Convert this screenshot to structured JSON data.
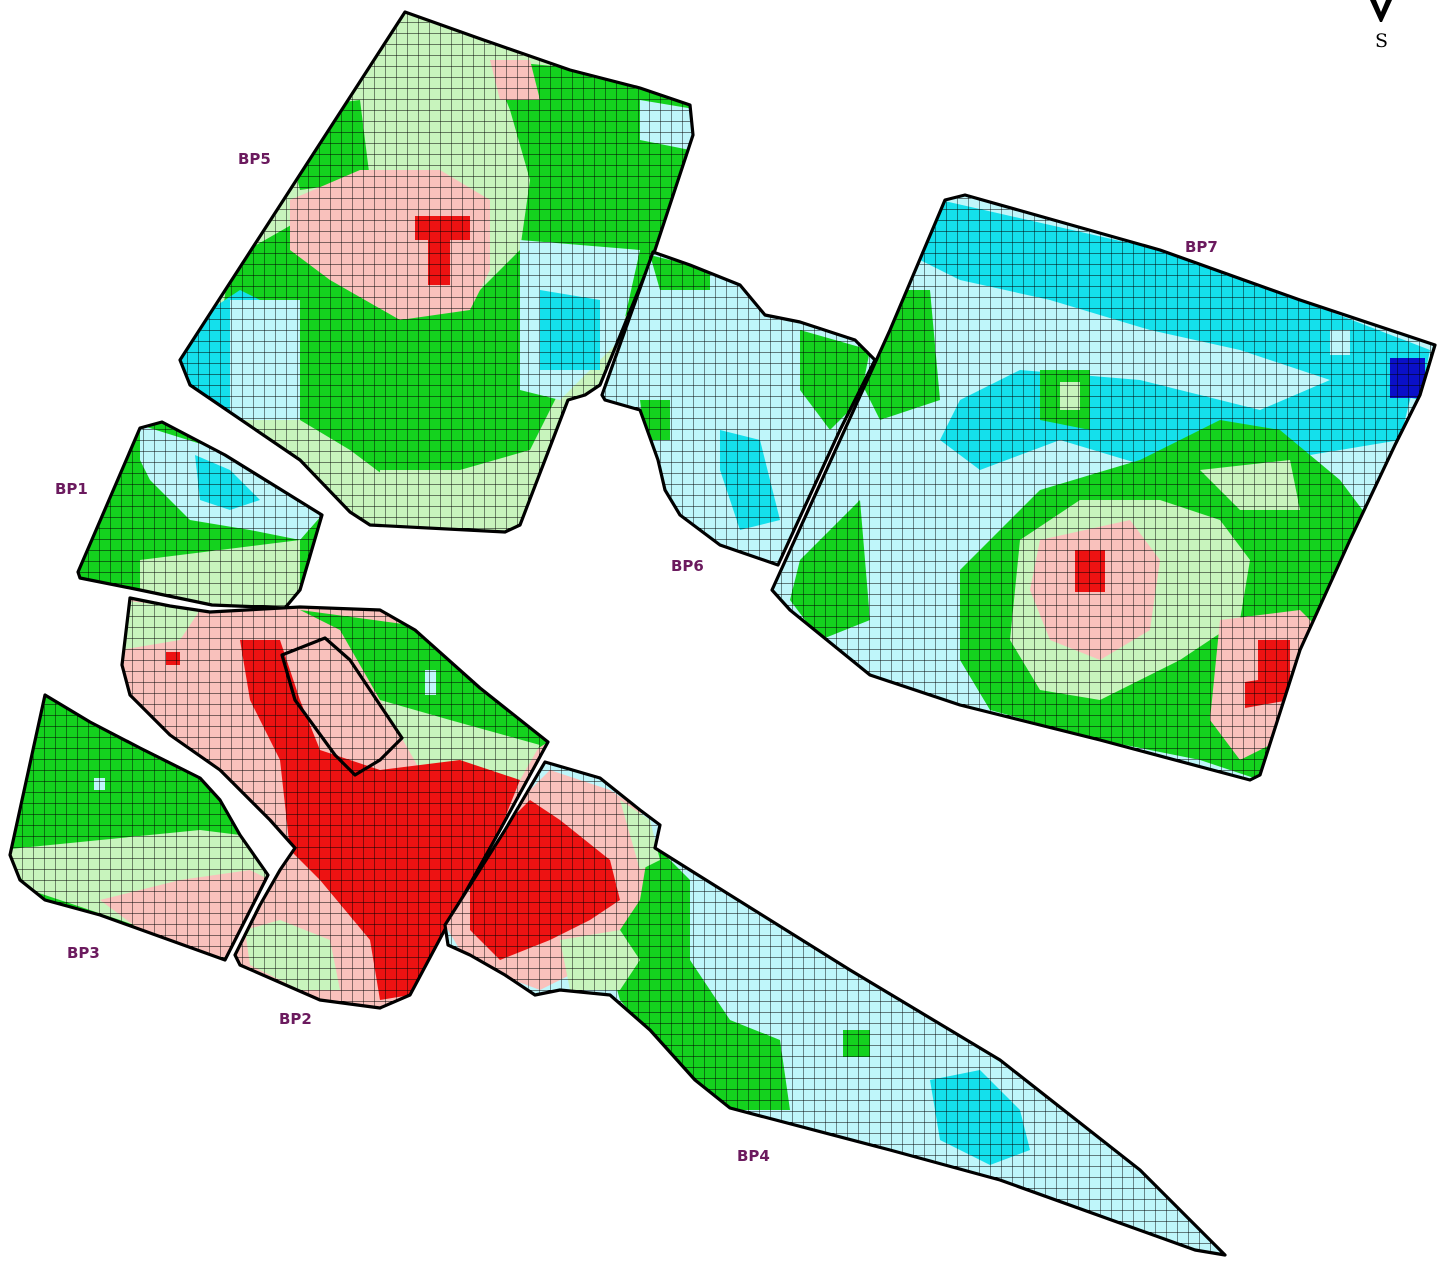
{
  "compass": {
    "letter": "S"
  },
  "colors": {
    "dark_blue": "#0a10c8",
    "cyan": "#14e0ec",
    "light_cyan": "#bff6fa",
    "green": "#14d21e",
    "light_green": "#c8f4bd",
    "pink": "#f9c1bc",
    "red": "#ed1212",
    "outline": "#000000",
    "label": "#6b1a5e"
  },
  "fields": [
    {
      "id": "BP5",
      "label": "BP5"
    },
    {
      "id": "BP7",
      "label": "BP7"
    },
    {
      "id": "BP1",
      "label": "BP1"
    },
    {
      "id": "BP6",
      "label": "BP6"
    },
    {
      "id": "BP3",
      "label": "BP3"
    },
    {
      "id": "BP2",
      "label": "BP2"
    },
    {
      "id": "BP4",
      "label": "BP4"
    }
  ]
}
